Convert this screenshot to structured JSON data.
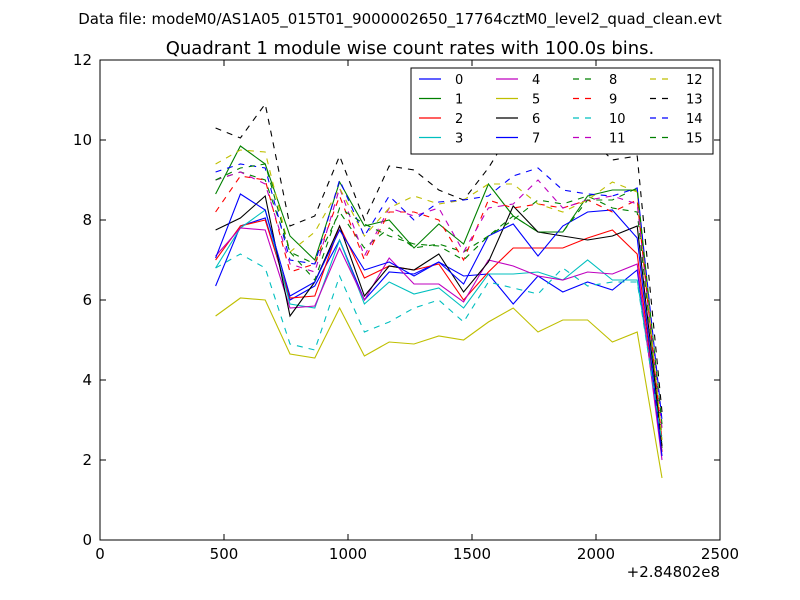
{
  "chart_data": {
    "type": "line",
    "suptitle": "Data file: modeM0/AS1A05_015T01_9000002650_17764cztM0_level2_quad_clean.evt",
    "title": "Quadrant 1 module wise count rates with 100.0s bins.",
    "xlabel": "",
    "ylabel": "",
    "x_offset_label": "+2.84802e8",
    "xlim": [
      0,
      2500
    ],
    "ylim": [
      0,
      12
    ],
    "xticks": [
      0,
      500,
      1000,
      1500,
      2000,
      2500
    ],
    "yticks": [
      0,
      2,
      4,
      6,
      8,
      10,
      12
    ],
    "grid": false,
    "legend_position": "top-right",
    "x": [
      466,
      566,
      666,
      766,
      866,
      966,
      1066,
      1166,
      1266,
      1366,
      1466,
      1566,
      1666,
      1766,
      1866,
      1966,
      2066,
      2166,
      2266
    ],
    "series": [
      {
        "name": "0",
        "color": "#0000ff",
        "style": "solid",
        "values": [
          6.35,
          7.85,
          8.05,
          6.0,
          6.35,
          7.5,
          6.0,
          6.7,
          6.65,
          6.95,
          6.6,
          6.65,
          5.9,
          6.6,
          6.2,
          6.45,
          6.25,
          6.75,
          2.2
        ]
      },
      {
        "name": "1",
        "color": "#008000",
        "style": "solid",
        "values": [
          8.65,
          9.85,
          9.4,
          7.6,
          7.0,
          8.95,
          7.85,
          8.0,
          7.3,
          7.9,
          7.4,
          8.9,
          8.1,
          7.7,
          7.7,
          8.6,
          8.75,
          8.75,
          2.3
        ]
      },
      {
        "name": "2",
        "color": "#ff0000",
        "style": "solid",
        "values": [
          7.0,
          7.85,
          8.0,
          6.05,
          6.1,
          7.85,
          6.55,
          6.85,
          6.75,
          6.9,
          6.0,
          6.7,
          7.3,
          7.3,
          7.3,
          7.55,
          7.75,
          7.15,
          2.2
        ]
      },
      {
        "name": "3",
        "color": "#00bfbf",
        "style": "solid",
        "values": [
          6.8,
          7.8,
          8.25,
          5.9,
          5.8,
          7.5,
          5.9,
          6.45,
          6.15,
          6.3,
          5.8,
          6.65,
          6.65,
          6.7,
          6.5,
          7.0,
          6.5,
          6.5,
          2.5
        ]
      },
      {
        "name": "4",
        "color": "#bf00bf",
        "style": "solid",
        "values": [
          7.1,
          7.8,
          7.75,
          5.8,
          5.85,
          7.3,
          6.0,
          7.05,
          6.4,
          6.4,
          5.95,
          7.0,
          6.85,
          6.6,
          6.5,
          6.7,
          6.65,
          6.9,
          2.0
        ]
      },
      {
        "name": "5",
        "color": "#bfbf00",
        "style": "solid",
        "values": [
          5.6,
          6.05,
          6.0,
          4.65,
          4.55,
          5.8,
          4.6,
          4.95,
          4.9,
          5.1,
          5.0,
          5.45,
          5.8,
          5.2,
          5.5,
          5.5,
          4.95,
          5.2,
          1.55
        ]
      },
      {
        "name": "6",
        "color": "#000000",
        "style": "solid",
        "values": [
          7.75,
          8.05,
          8.6,
          5.6,
          6.45,
          7.85,
          6.1,
          6.85,
          6.75,
          7.15,
          6.2,
          6.95,
          8.35,
          7.7,
          7.6,
          7.5,
          7.6,
          7.85,
          2.35
        ]
      },
      {
        "name": "7",
        "color": "#0000ff",
        "style": "solid",
        "values": [
          7.05,
          8.65,
          8.25,
          6.1,
          6.45,
          7.75,
          6.75,
          6.95,
          6.6,
          6.95,
          6.4,
          7.6,
          7.9,
          7.1,
          7.85,
          8.2,
          8.25,
          7.55,
          2.1
        ]
      },
      {
        "name": "8",
        "color": "#008000",
        "style": "dashed",
        "values": [
          9.0,
          9.2,
          9.0,
          7.2,
          6.9,
          8.2,
          7.3,
          7.8,
          7.3,
          7.4,
          7.2,
          7.6,
          8.0,
          8.5,
          8.4,
          8.6,
          8.3,
          8.2,
          2.6
        ]
      },
      {
        "name": "9",
        "color": "#ff0000",
        "style": "dashed",
        "values": [
          8.2,
          9.1,
          9.0,
          6.7,
          6.9,
          8.6,
          7.0,
          8.2,
          8.2,
          8.0,
          7.0,
          8.5,
          8.3,
          8.4,
          8.3,
          8.5,
          8.2,
          8.5,
          2.5
        ]
      },
      {
        "name": "10",
        "color": "#00bfbf",
        "style": "dashed",
        "values": [
          6.8,
          7.15,
          6.8,
          4.9,
          4.75,
          6.6,
          5.2,
          5.45,
          5.8,
          6.0,
          5.45,
          6.45,
          6.3,
          6.15,
          6.8,
          6.35,
          6.45,
          6.45,
          2.45
        ]
      },
      {
        "name": "11",
        "color": "#bf00bf",
        "style": "dashed",
        "values": [
          9.0,
          9.2,
          8.9,
          6.9,
          6.7,
          8.8,
          7.1,
          8.3,
          8.1,
          8.3,
          7.2,
          8.3,
          8.4,
          9.0,
          8.3,
          8.5,
          8.6,
          8.4,
          2.8
        ]
      },
      {
        "name": "12",
        "color": "#bfbf00",
        "style": "dashed",
        "values": [
          9.4,
          9.75,
          9.7,
          7.2,
          7.7,
          8.8,
          7.6,
          8.3,
          8.6,
          8.4,
          8.5,
          8.9,
          8.9,
          8.4,
          8.2,
          8.5,
          8.95,
          8.7,
          2.5
        ]
      },
      {
        "name": "13",
        "color": "#000000",
        "style": "dashed",
        "values": [
          10.3,
          10.05,
          10.9,
          7.85,
          8.1,
          9.6,
          8.0,
          9.35,
          9.25,
          8.75,
          8.5,
          9.3,
          10.3,
          9.65,
          9.85,
          10.1,
          9.5,
          9.6,
          3.2
        ]
      },
      {
        "name": "14",
        "color": "#0000ff",
        "style": "dashed",
        "values": [
          9.2,
          9.4,
          9.3,
          7.0,
          6.9,
          9.0,
          7.6,
          8.6,
          8.0,
          8.45,
          8.5,
          8.6,
          9.1,
          9.3,
          8.75,
          8.65,
          8.6,
          8.8,
          3.0
        ]
      },
      {
        "name": "15",
        "color": "#008000",
        "style": "dashed",
        "values": [
          9.0,
          9.3,
          9.4,
          7.2,
          6.5,
          8.3,
          7.9,
          7.6,
          7.4,
          7.35,
          7.0,
          7.6,
          8.1,
          7.7,
          7.7,
          8.5,
          8.5,
          8.8,
          2.9
        ]
      }
    ]
  }
}
